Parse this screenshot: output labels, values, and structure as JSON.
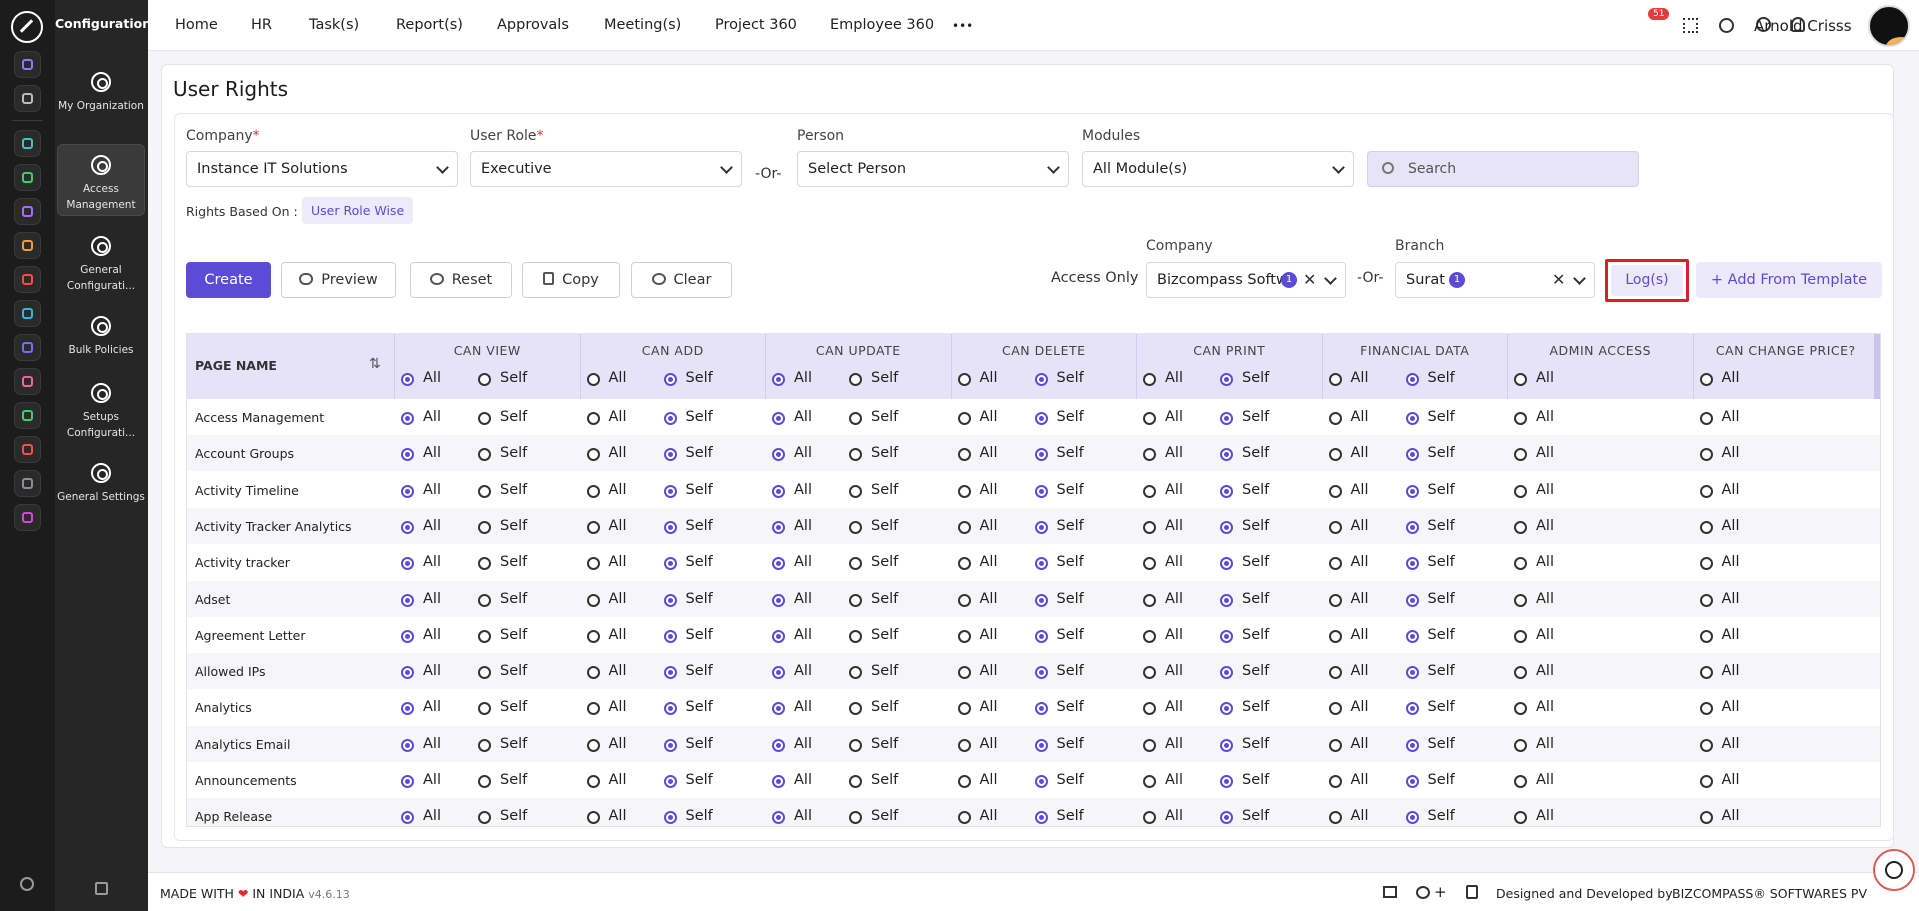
{
  "sidebar": {
    "section_title": "Configuration",
    "rail_icons": [
      "home-icon",
      "pin-icon",
      "org-icon",
      "inbox-icon",
      "briefcase-icon",
      "money-icon",
      "target-icon",
      "archive-icon",
      "plane-icon",
      "monitor-icon",
      "document-icon",
      "award-icon",
      "building-icon",
      "hexagon-icon"
    ],
    "items": [
      {
        "label": "My Organization",
        "icon": "gear-icon"
      },
      {
        "label": "Access Management",
        "icon": "gear-icon"
      },
      {
        "label": "General Configurati...",
        "icon": "gear-icon"
      },
      {
        "label": "Bulk Policies",
        "icon": "document-icon"
      },
      {
        "label": "Setups Configurati...",
        "icon": "gear-icon"
      },
      {
        "label": "General Settings",
        "icon": "gear-icon"
      }
    ]
  },
  "topnav": {
    "items": [
      "Home",
      "HR",
      "Task(s)",
      "Report(s)",
      "Approvals",
      "Meeting(s)",
      "Project 360",
      "Employee 360"
    ],
    "more": "•••",
    "notification_count": "51",
    "user_name": "Arnold Crisss"
  },
  "page": {
    "title": "User Rights"
  },
  "filters": {
    "company_label": "Company",
    "company_value": "Instance IT Solutions",
    "role_label": "User Role",
    "role_value": "Executive",
    "or_text": "-Or-",
    "person_label": "Person",
    "person_value": "Select Person",
    "modules_label": "Modules",
    "modules_value": "All Module(s)",
    "search_placeholder": "Search",
    "required_mark": "*",
    "rights_based_label": "Rights Based On :",
    "rights_based_value": "User Role Wise"
  },
  "actions": {
    "create": "Create",
    "preview": "Preview",
    "reset": "Reset",
    "copy": "Copy",
    "clear": "Clear",
    "access_only": "Access Only",
    "company_label": "Company",
    "company_value": "Bizcompass Softw",
    "company_count": "1",
    "or_text": "-Or-",
    "branch_label": "Branch",
    "branch_value": "Surat",
    "branch_count": "1",
    "logs": "Log(s)",
    "add_template": "+ Add From Template"
  },
  "table": {
    "name_header": "PAGE NAME",
    "all_label": "All",
    "self_label": "Self",
    "columns": [
      {
        "header": "CAN VIEW",
        "has_self": true,
        "header_default": "all"
      },
      {
        "header": "CAN ADD",
        "has_self": true,
        "header_default": "self"
      },
      {
        "header": "CAN UPDATE",
        "has_self": true,
        "header_default": "all"
      },
      {
        "header": "CAN DELETE",
        "has_self": true,
        "header_default": "self"
      },
      {
        "header": "CAN PRINT",
        "has_self": true,
        "header_default": "self"
      },
      {
        "header": "FINANCIAL DATA",
        "has_self": true,
        "header_default": "self"
      },
      {
        "header": "ADMIN ACCESS",
        "has_self": false,
        "header_default": "none"
      },
      {
        "header": "CAN CHANGE PRICE?",
        "has_self": false,
        "header_default": "none"
      }
    ],
    "rows": [
      "Access Management",
      "Account Groups",
      "Activity Timeline",
      "Activity Tracker Analytics",
      "Activity tracker",
      "Adset",
      "Agreement Letter",
      "Allowed IPs",
      "Analytics",
      "Analytics Email",
      "Announcements",
      "App Release"
    ],
    "row_selection": [
      "all",
      "self",
      "all",
      "self",
      "self",
      "self",
      "none",
      "none"
    ]
  },
  "footer": {
    "made_with": "MADE WITH",
    "heart": "❤",
    "in_india": "IN INDIA",
    "version": "v4.6.13",
    "designed_by": "Designed and Developed by",
    "brand": "BIZCOMPASS® SOFTWARES PV",
    "plus": "+"
  },
  "colors": {
    "accent": "#5b4bd6",
    "sidebar_bg": "#1c1c1c",
    "highlight_border": "#d8202a",
    "header_bg": "#e6e2f8"
  }
}
